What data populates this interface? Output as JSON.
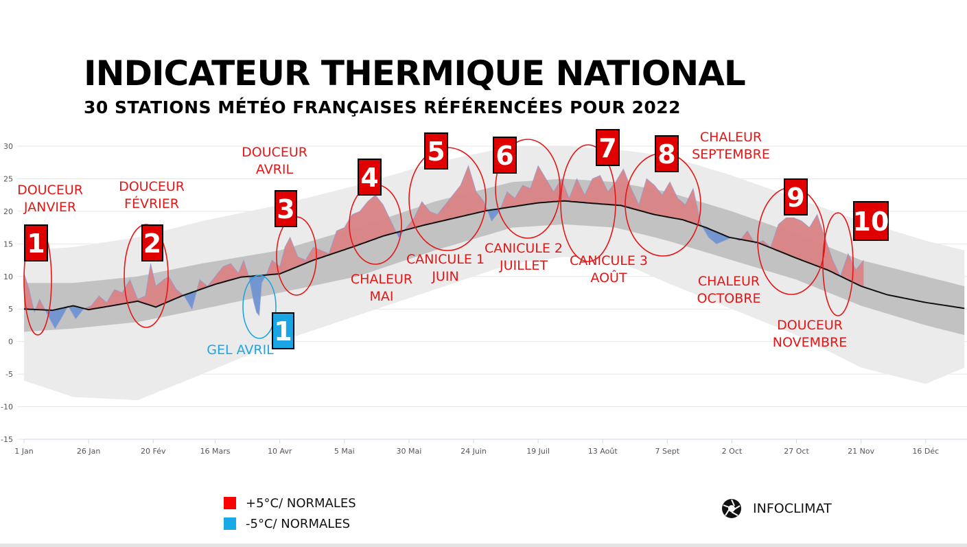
{
  "header": {
    "title": "INDICATEUR THERMIQUE NATIONAL",
    "subtitle": "30 STATIONS MÉTÉO FRANÇAISES RÉFÉRENCÉES POUR 2022"
  },
  "legend": {
    "items": [
      {
        "label": "+5°C/ NORMALES",
        "color": "#ff0000"
      },
      {
        "label": "-5°C/ NORMALES",
        "color": "#17a9e5"
      }
    ]
  },
  "brand": {
    "label": "INFOCLIMAT",
    "icon": "aperture-icon"
  },
  "colors": {
    "warm_area": "#d98384",
    "cold_area": "#6f93d1",
    "red_text": "#e41616",
    "blue_text": "#1ea6e0",
    "badge_red": "#e00000",
    "badge_blue": "#1aa6e4",
    "normal_line": "#111111",
    "band_inner": "#c2c2c2",
    "band_outer": "#ebebeb"
  },
  "chart_data": {
    "type": "area",
    "title": "",
    "xlabel": "",
    "ylabel": "",
    "ylim": [
      -15,
      30
    ],
    "y_ticks": [
      "30",
      "25",
      "20",
      "15",
      "10",
      "5",
      "0",
      "-5",
      "-10",
      "-15"
    ],
    "grid": true,
    "x_ticks": [
      {
        "day": 1,
        "label": "1 Jan"
      },
      {
        "day": 26,
        "label": "26 Jan"
      },
      {
        "day": 51,
        "label": "20 Fév"
      },
      {
        "day": 75,
        "label": "16 Mars"
      },
      {
        "day": 100,
        "label": "10 Avr"
      },
      {
        "day": 125,
        "label": "5 Mai"
      },
      {
        "day": 150,
        "label": "30 Mai"
      },
      {
        "day": 175,
        "label": "24 Juin"
      },
      {
        "day": 200,
        "label": "19 Juil"
      },
      {
        "day": 225,
        "label": "13 Août"
      },
      {
        "day": 250,
        "label": "7 Sept"
      },
      {
        "day": 275,
        "label": "2 Oct"
      },
      {
        "day": 300,
        "label": "27 Oct"
      },
      {
        "day": 325,
        "label": "21 Nov"
      },
      {
        "day": 350,
        "label": "16 Déc"
      }
    ],
    "series": {
      "normal": {
        "days": [
          1,
          12,
          20,
          26,
          35,
          45,
          52,
          62,
          75,
          85,
          100,
          113,
          128,
          140,
          155,
          168,
          180,
          190,
          200,
          210,
          222,
          232,
          245,
          256,
          265,
          274,
          285,
          300,
          312,
          325,
          335,
          350,
          365
        ],
        "values": [
          5.0,
          4.8,
          5.5,
          4.9,
          5.5,
          6.2,
          5.3,
          7.0,
          8.8,
          9.9,
          10.4,
          12.5,
          14.5,
          16.2,
          17.8,
          19.0,
          20.1,
          20.7,
          21.3,
          21.6,
          21.2,
          20.9,
          19.5,
          18.7,
          17.5,
          16.0,
          15.2,
          12.8,
          11.0,
          8.5,
          7.2,
          6.0,
          5.1
        ]
      },
      "observed": {
        "days": [
          1,
          3,
          5,
          7,
          9,
          11,
          13,
          16,
          18,
          21,
          24,
          27,
          30,
          33,
          36,
          39,
          42,
          45,
          48,
          50,
          52,
          55,
          57,
          60,
          63,
          66,
          69,
          72,
          75,
          78,
          81,
          84,
          86,
          88,
          90,
          91,
          92,
          93,
          95,
          97,
          100,
          102,
          104,
          107,
          110,
          113,
          116,
          119,
          122,
          125,
          128,
          131,
          134,
          137,
          140,
          143,
          146,
          149,
          152,
          155,
          158,
          161,
          164,
          167,
          170,
          173,
          176,
          179,
          182,
          185,
          188,
          191,
          194,
          197,
          200,
          203,
          206,
          209,
          212,
          215,
          218,
          221,
          224,
          227,
          230,
          233,
          236,
          239,
          242,
          245,
          248,
          251,
          254,
          257,
          260,
          263,
          266,
          269,
          272,
          275,
          278,
          281,
          284,
          287,
          290,
          293,
          296,
          299,
          302,
          305,
          308,
          311,
          314,
          317,
          320,
          323,
          326
        ],
        "values": [
          10.5,
          8.0,
          4.5,
          6.5,
          5.0,
          3.5,
          2.0,
          4.0,
          5.5,
          3.5,
          5.0,
          5.5,
          7.0,
          6.0,
          8.0,
          7.5,
          9.5,
          6.5,
          7.0,
          12.0,
          8.5,
          9.5,
          10.0,
          8.0,
          7.0,
          5.0,
          9.5,
          8.5,
          10.0,
          11.5,
          12.0,
          10.5,
          12.5,
          10.0,
          6.0,
          4.5,
          4.0,
          9.0,
          10.5,
          12.5,
          11.5,
          14.5,
          16.0,
          13.0,
          12.5,
          14.5,
          14.0,
          13.5,
          17.0,
          17.5,
          19.5,
          20.0,
          21.5,
          22.5,
          21.0,
          18.5,
          16.0,
          17.5,
          19.0,
          21.5,
          20.0,
          19.5,
          21.0,
          22.5,
          24.0,
          27.0,
          23.0,
          21.5,
          18.5,
          20.0,
          23.0,
          22.0,
          24.0,
          23.5,
          27.0,
          25.0,
          23.0,
          25.0,
          22.0,
          25.0,
          22.5,
          25.0,
          25.5,
          23.0,
          24.5,
          26.5,
          23.5,
          21.0,
          25.0,
          24.0,
          22.5,
          24.5,
          22.0,
          21.0,
          23.5,
          18.0,
          16.0,
          15.0,
          15.5,
          16.0,
          15.5,
          17.0,
          15.0,
          15.5,
          14.5,
          18.0,
          19.0,
          19.0,
          18.5,
          17.5,
          19.5,
          16.0,
          12.5,
          10.0,
          13.5,
          11.0,
          12.5
        ]
      },
      "band_inner": {
        "days": [
          1,
          20,
          45,
          70,
          100,
          130,
          160,
          190,
          210,
          230,
          250,
          275,
          300,
          325,
          350,
          365
        ],
        "lower": [
          1.5,
          2.0,
          3.0,
          5.0,
          7.5,
          10.0,
          14.0,
          17.5,
          18.0,
          17.5,
          15.5,
          12.5,
          9.5,
          5.5,
          2.5,
          1.0
        ],
        "upper": [
          9.0,
          9.0,
          10.0,
          12.0,
          14.0,
          17.5,
          21.5,
          24.5,
          25.0,
          24.5,
          23.0,
          20.0,
          16.5,
          12.5,
          10.0,
          8.5
        ]
      },
      "band_outer": {
        "days": [
          1,
          20,
          45,
          70,
          100,
          130,
          160,
          190,
          210,
          230,
          250,
          275,
          300,
          325,
          350,
          365
        ],
        "lower": [
          -6.0,
          -8.5,
          -9.0,
          -5.0,
          0.0,
          4.0,
          8.0,
          12.0,
          13.0,
          12.5,
          9.0,
          5.0,
          1.0,
          -4.0,
          -6.5,
          -4.0
        ],
        "upper": [
          14.0,
          14.5,
          16.0,
          18.5,
          21.0,
          24.0,
          27.5,
          30.0,
          30.0,
          29.5,
          28.5,
          25.5,
          22.0,
          18.5,
          15.5,
          14.0
        ]
      }
    },
    "annotations": [
      {
        "id": "1",
        "color": "red",
        "label_lines": [
          "DOUCEUR",
          "JANVIER"
        ],
        "day": 6
      },
      {
        "id": "2",
        "color": "red",
        "label_lines": [
          "DOUCEUR",
          "FÉVRIER"
        ],
        "day": 54
      },
      {
        "id": "1",
        "color": "blue",
        "label_lines": [
          "GEL AVRIL"
        ],
        "day": 91
      },
      {
        "id": "3",
        "color": "red",
        "label_lines": [
          "DOUCEUR",
          "AVRIL"
        ],
        "day": 104
      },
      {
        "id": "4",
        "color": "red",
        "label_lines": [
          "CHALEUR",
          "MAI"
        ],
        "day": 136
      },
      {
        "id": "5",
        "color": "red",
        "label_lines": [
          "CANICULE 1",
          "JUIN"
        ],
        "day": 164
      },
      {
        "id": "6",
        "color": "red",
        "label_lines": [
          "CANICULE 2",
          "JUILLET"
        ],
        "day": 196
      },
      {
        "id": "7",
        "color": "red",
        "label_lines": [
          "CANICULE 3",
          "AOÛT"
        ],
        "day": 227
      },
      {
        "id": "8",
        "color": "red",
        "label_lines": [
          "CHALEUR",
          "SEPTEMBRE"
        ],
        "day": 256
      },
      {
        "id": "8b",
        "color": "red",
        "label_lines": [
          "CHALEUR",
          "OCTOBRE"
        ],
        "day": 288
      },
      {
        "id": "9",
        "color": "red",
        "label_lines": [],
        "day": 298
      },
      {
        "id": "10",
        "color": "red",
        "label_lines": [
          "DOUCEUR",
          "NOVEMBRE"
        ],
        "day": 320
      }
    ]
  }
}
